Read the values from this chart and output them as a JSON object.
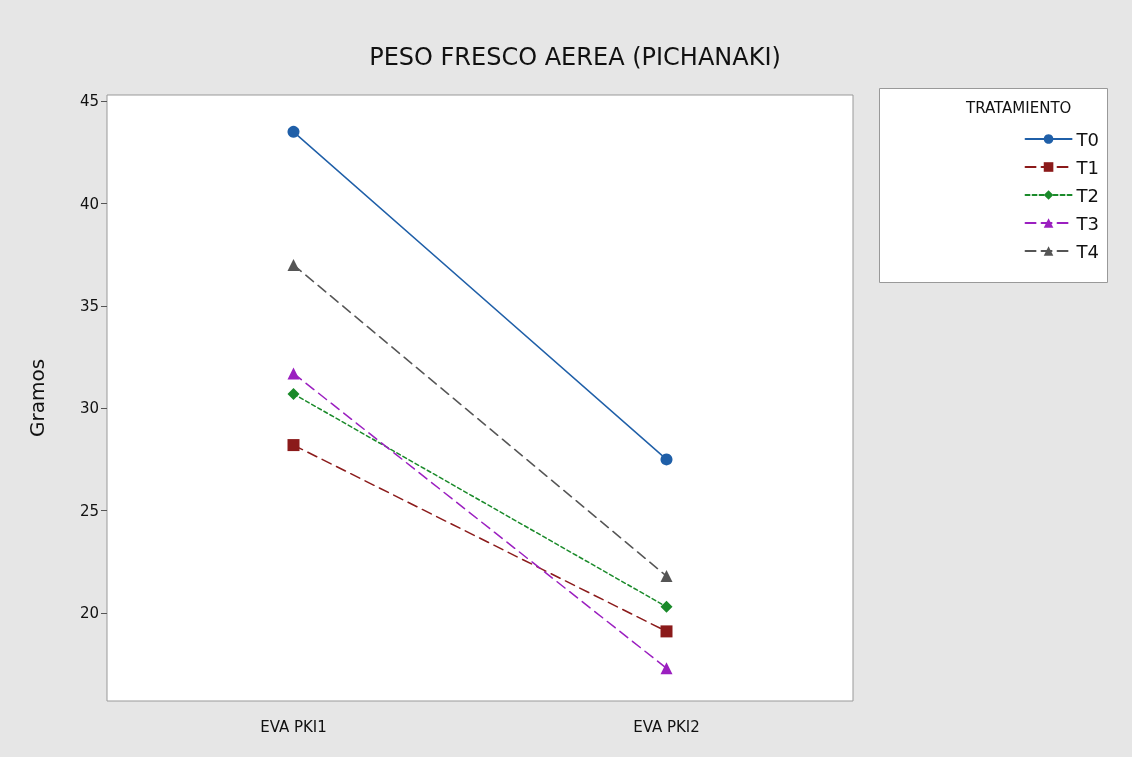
{
  "chart_data": {
    "type": "line",
    "title": "PESO FRESCO AEREA (PICHANAKI)",
    "ylabel": "Gramos",
    "legend_title": "TRATAMIENTO",
    "categories": [
      "EVA PKI1",
      "EVA PKI2"
    ],
    "series": [
      {
        "name": "T0",
        "color": "#1f5fa8",
        "values": [
          43.5,
          27.5
        ],
        "marker": "circle",
        "line_style": "solid"
      },
      {
        "name": "T1",
        "color": "#8b1a1a",
        "values": [
          28.2,
          19.1
        ],
        "marker": "square",
        "line_style": "dashed"
      },
      {
        "name": "T2",
        "color": "#1a8a2a",
        "values": [
          30.7,
          20.3
        ],
        "marker": "diamond",
        "line_style": "dotted"
      },
      {
        "name": "T3",
        "color": "#9b1fc0",
        "values": [
          31.7,
          17.3
        ],
        "marker": "triangle",
        "line_style": "dashed"
      },
      {
        "name": "T4",
        "color": "#555555",
        "values": [
          37.0,
          21.8
        ],
        "marker": "triangle",
        "line_style": "dashed"
      }
    ],
    "ylim": [
      15.7,
      45.3
    ],
    "yticks": [
      20,
      25,
      30,
      35,
      40,
      45
    ],
    "grid": false,
    "legend": "right"
  }
}
